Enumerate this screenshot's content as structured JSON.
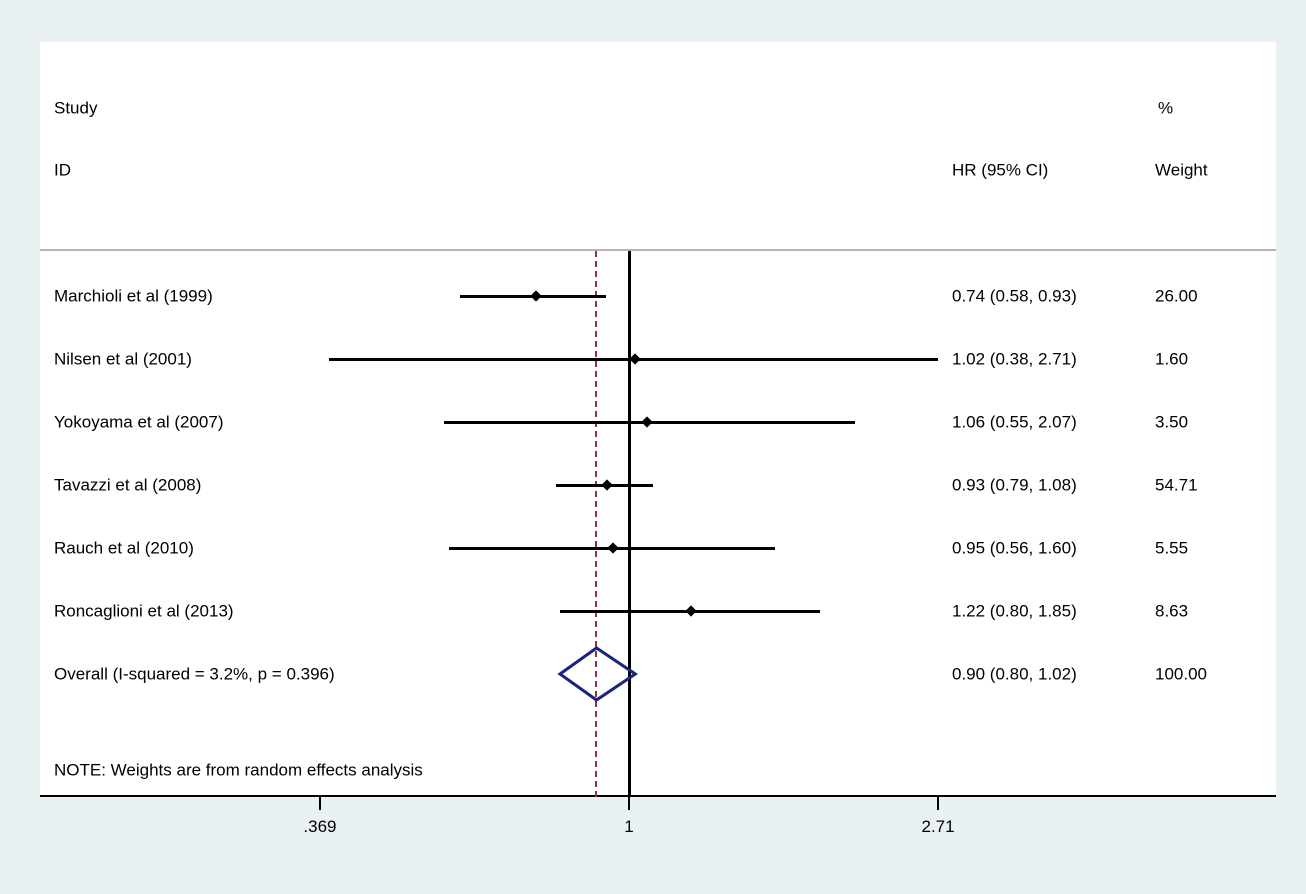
{
  "figure": {
    "background_color": "#eaf1f3",
    "plot_background_color": "#ffffff"
  },
  "header": {
    "study_line1": "Study",
    "study_line2": "ID",
    "hr_column": "HR (95% CI)",
    "weight_line1": "%",
    "weight_line2": "Weight"
  },
  "note": "NOTE: Weights are from random effects analysis",
  "chart_data": {
    "type": "forest",
    "x_scale": "log",
    "xlabel": "",
    "ylabel": "",
    "null_line_value": 1,
    "overall_dashed_line_value": 0.9,
    "x_ticks": [
      {
        "label": ".369",
        "value": 0.369
      },
      {
        "label": "1",
        "value": 1
      },
      {
        "label": "2.71",
        "value": 2.71
      }
    ],
    "studies": [
      {
        "id": "Marchioli et al (1999)",
        "hr": 0.74,
        "ci_low": 0.58,
        "ci_high": 0.93,
        "weight": 26.0,
        "hr_ci_label": "0.74 (0.58, 0.93)",
        "weight_label": "26.00"
      },
      {
        "id": "Nilsen et al (2001)",
        "hr": 1.02,
        "ci_low": 0.38,
        "ci_high": 2.71,
        "weight": 1.6,
        "hr_ci_label": "1.02 (0.38, 2.71)",
        "weight_label": "1.60"
      },
      {
        "id": "Yokoyama et al (2007)",
        "hr": 1.06,
        "ci_low": 0.55,
        "ci_high": 2.07,
        "weight": 3.5,
        "hr_ci_label": "1.06 (0.55, 2.07)",
        "weight_label": "3.50"
      },
      {
        "id": "Tavazzi et al (2008)",
        "hr": 0.93,
        "ci_low": 0.79,
        "ci_high": 1.08,
        "weight": 54.71,
        "hr_ci_label": "0.93 (0.79, 1.08)",
        "weight_label": "54.71"
      },
      {
        "id": "Rauch et al (2010)",
        "hr": 0.95,
        "ci_low": 0.56,
        "ci_high": 1.6,
        "weight": 5.55,
        "hr_ci_label": "0.95 (0.56, 1.60)",
        "weight_label": "5.55"
      },
      {
        "id": "Roncaglioni et al (2013)",
        "hr": 1.22,
        "ci_low": 0.8,
        "ci_high": 1.85,
        "weight": 8.63,
        "hr_ci_label": "1.22 (0.80, 1.85)",
        "weight_label": "8.63"
      }
    ],
    "overall": {
      "id": "Overall  (I-squared = 3.2%, p = 0.396)",
      "hr": 0.9,
      "ci_low": 0.8,
      "ci_high": 1.02,
      "weight": 100.0,
      "hr_ci_label": "0.90 (0.80, 1.02)",
      "weight_label": "100.00"
    },
    "colors": {
      "ci_line": "#000000",
      "marker": "#000000",
      "diamond_outline": "#1a237e",
      "dashed_line": "#90353b",
      "null_line": "#000000",
      "header_separator": "#b5b5b5"
    }
  }
}
